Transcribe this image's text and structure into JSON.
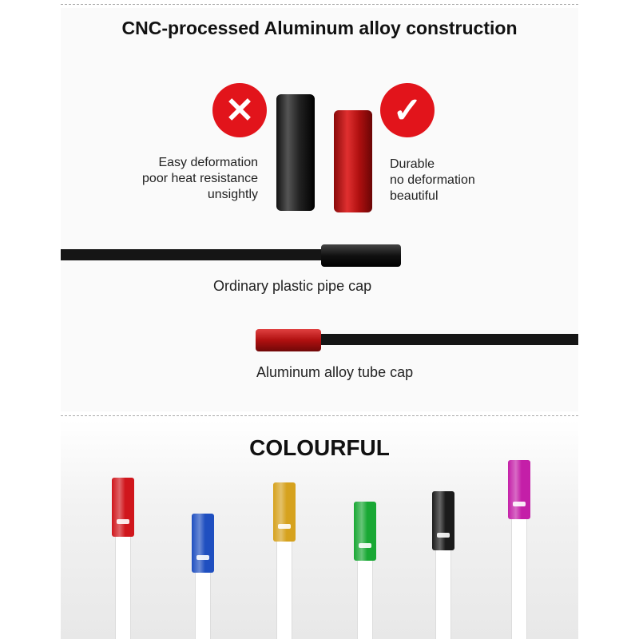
{
  "section1": {
    "title": "CNC-processed Aluminum alloy construction",
    "bad_icon": "cross-icon",
    "good_icon": "check-icon",
    "bad_lines": [
      "Easy deformation",
      "poor heat resistance",
      "unsightly"
    ],
    "good_lines": [
      "Durable",
      "no deformation",
      "beautiful"
    ],
    "plastic_caption": "Ordinary plastic pipe cap",
    "aluminum_caption": "Aluminum alloy tube cap"
  },
  "section2": {
    "title": "COLOURFUL",
    "cap_colors": [
      "#d0161c",
      "#1f4fc0",
      "#d6a21e",
      "#19a834",
      "#1b1b1b",
      "#c41fa8"
    ]
  }
}
